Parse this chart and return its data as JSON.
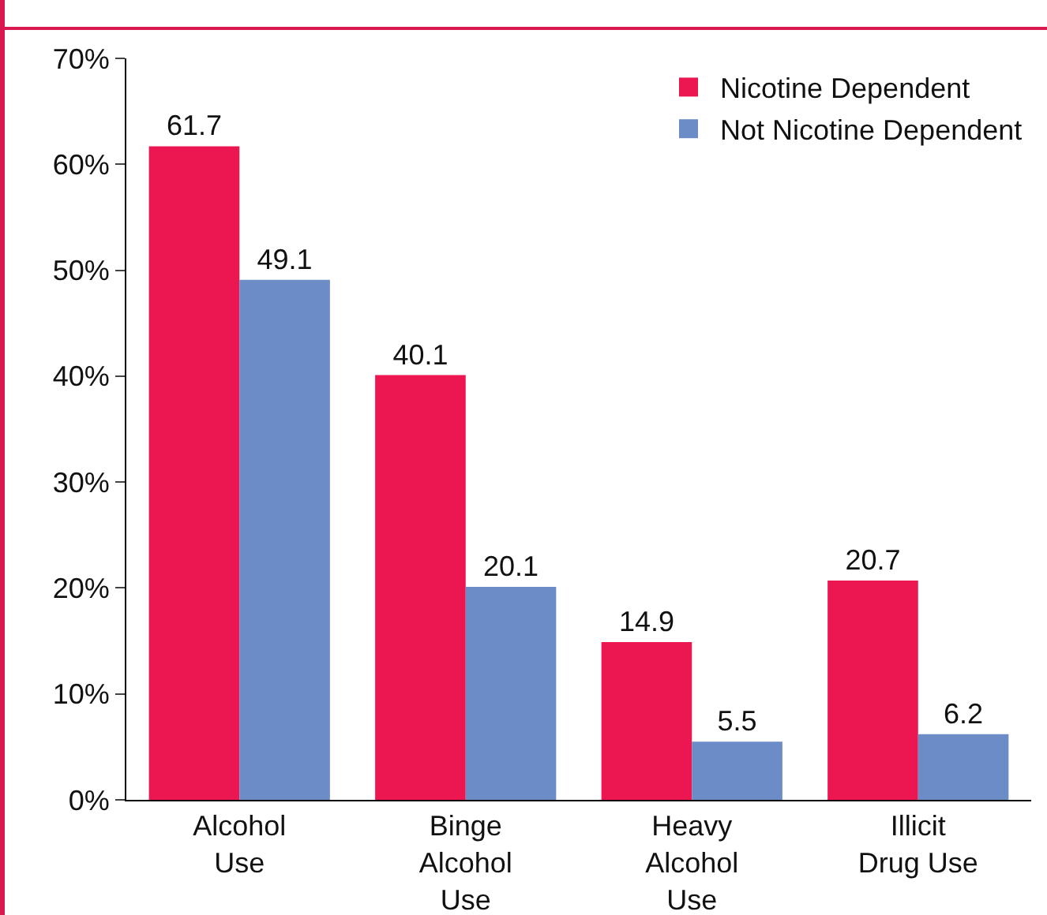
{
  "chart_data": {
    "type": "bar",
    "categories": [
      "Alcohol Use",
      "Binge Alcohol Use",
      "Heavy Alcohol Use",
      "Illicit Drug Use"
    ],
    "series": [
      {
        "name": "Nicotine Dependent",
        "color": "#ec1651",
        "values": [
          61.7,
          40.1,
          14.9,
          20.7
        ]
      },
      {
        "name": "Not Nicotine Dependent",
        "color": "#6b8cc7",
        "values": [
          49.1,
          20.1,
          5.5,
          6.2
        ]
      }
    ],
    "ylim": [
      0,
      70
    ],
    "yticks": [
      {
        "value": 0,
        "label": "0%"
      },
      {
        "value": 10,
        "label": "10%"
      },
      {
        "value": 20,
        "label": "20%"
      },
      {
        "value": 30,
        "label": "30%"
      },
      {
        "value": 40,
        "label": "40%"
      },
      {
        "value": 50,
        "label": "50%"
      },
      {
        "value": 60,
        "label": "60%"
      },
      {
        "value": 70,
        "label": "70%"
      }
    ],
    "data_labels": true,
    "grid": false,
    "legend": "top right"
  }
}
